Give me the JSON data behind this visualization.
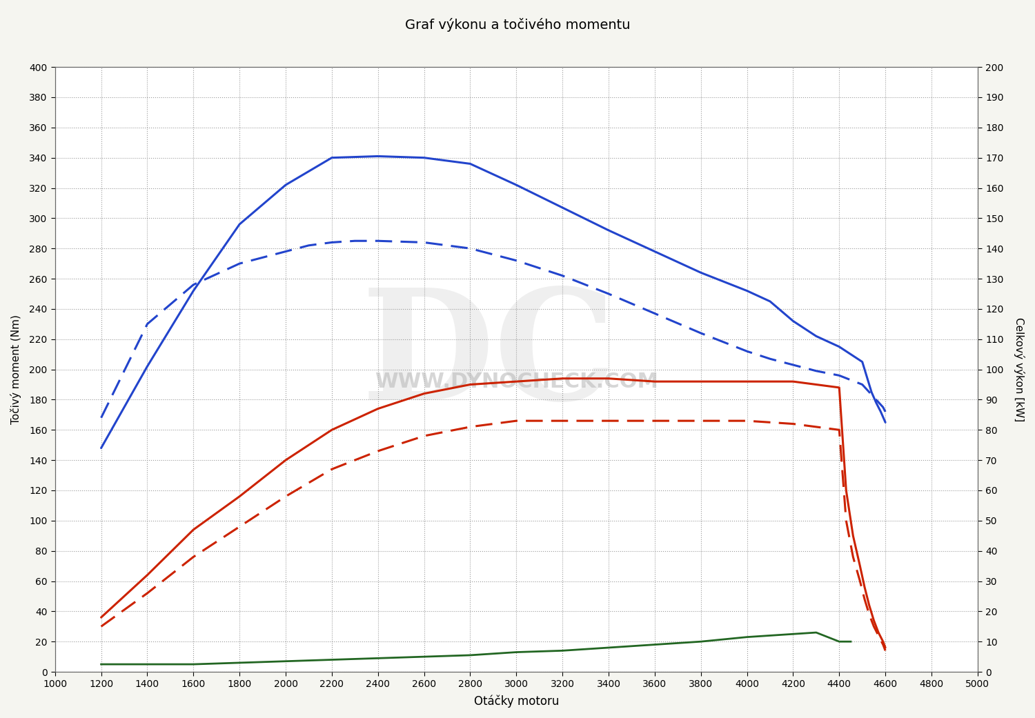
{
  "title": "Graf výkonu a točivého momentu",
  "xlabel": "Otáčky motoru",
  "ylabel_left": "Točivý moment (Nm)",
  "ylabel_right": "Celkový výkon [kW]",
  "ylim_left": [
    0,
    400
  ],
  "ylim_right": [
    0,
    200
  ],
  "xlim": [
    1000,
    5000
  ],
  "bg_color": "#f5f5f0",
  "plot_bg_color": "#ffffff",
  "grid_color": "#999999",
  "rpm_blue_solid": [
    1200,
    1400,
    1600,
    1800,
    2000,
    2200,
    2400,
    2600,
    2800,
    3000,
    3200,
    3400,
    3600,
    3800,
    4000,
    4100,
    4200,
    4300,
    4400,
    4450,
    4500,
    4520,
    4540,
    4560,
    4580,
    4600
  ],
  "torque_blue_solid": [
    148,
    202,
    252,
    296,
    322,
    340,
    341,
    340,
    336,
    322,
    307,
    292,
    278,
    264,
    252,
    245,
    232,
    222,
    215,
    210,
    205,
    195,
    185,
    178,
    172,
    165
  ],
  "rpm_blue_dashed": [
    1200,
    1400,
    1600,
    1800,
    2000,
    2100,
    2200,
    2300,
    2400,
    2600,
    2800,
    3000,
    3200,
    3400,
    3600,
    3800,
    4000,
    4100,
    4200,
    4300,
    4400,
    4450,
    4500,
    4530,
    4560,
    4590,
    4600
  ],
  "torque_blue_dashed": [
    168,
    230,
    256,
    270,
    278,
    282,
    284,
    285,
    285,
    284,
    280,
    272,
    262,
    250,
    237,
    224,
    212,
    207,
    203,
    199,
    196,
    193,
    190,
    185,
    180,
    175,
    172
  ],
  "rpm_red_solid": [
    1200,
    1400,
    1600,
    1800,
    2000,
    2200,
    2400,
    2600,
    2800,
    3000,
    3200,
    3400,
    3600,
    3800,
    4000,
    4200,
    4300,
    4400,
    4430,
    4460,
    4490,
    4510,
    4530,
    4550,
    4570,
    4590,
    4600
  ],
  "power_red_solid": [
    18,
    32,
    47,
    58,
    70,
    80,
    87,
    92,
    95,
    96,
    97,
    97,
    96,
    96,
    96,
    96,
    95,
    94,
    60,
    45,
    35,
    28,
    22,
    17,
    13,
    10,
    8
  ],
  "rpm_red_dashed": [
    1200,
    1400,
    1600,
    1800,
    2000,
    2200,
    2400,
    2600,
    2800,
    3000,
    3200,
    3400,
    3600,
    3800,
    4000,
    4200,
    4300,
    4400,
    4430,
    4460,
    4490,
    4510,
    4530,
    4550,
    4570,
    4590,
    4600
  ],
  "power_red_dashed": [
    15,
    26,
    38,
    48,
    58,
    67,
    73,
    78,
    81,
    83,
    83,
    83,
    83,
    83,
    83,
    82,
    81,
    80,
    50,
    38,
    30,
    24,
    19,
    15,
    12,
    9,
    7
  ],
  "rpm_green": [
    1200,
    1400,
    1600,
    1800,
    2000,
    2200,
    2400,
    2600,
    2800,
    3000,
    3200,
    3400,
    3600,
    3800,
    4000,
    4200,
    4300,
    4400,
    4450
  ],
  "green_vals": [
    5,
    5,
    5,
    6,
    7,
    8,
    9,
    10,
    11,
    13,
    14,
    16,
    18,
    20,
    23,
    25,
    26,
    20,
    20
  ],
  "color_blue": "#2244cc",
  "color_red": "#cc2200",
  "color_green": "#226622",
  "linewidth": 2.2,
  "dashed_style": [
    8,
    4
  ]
}
